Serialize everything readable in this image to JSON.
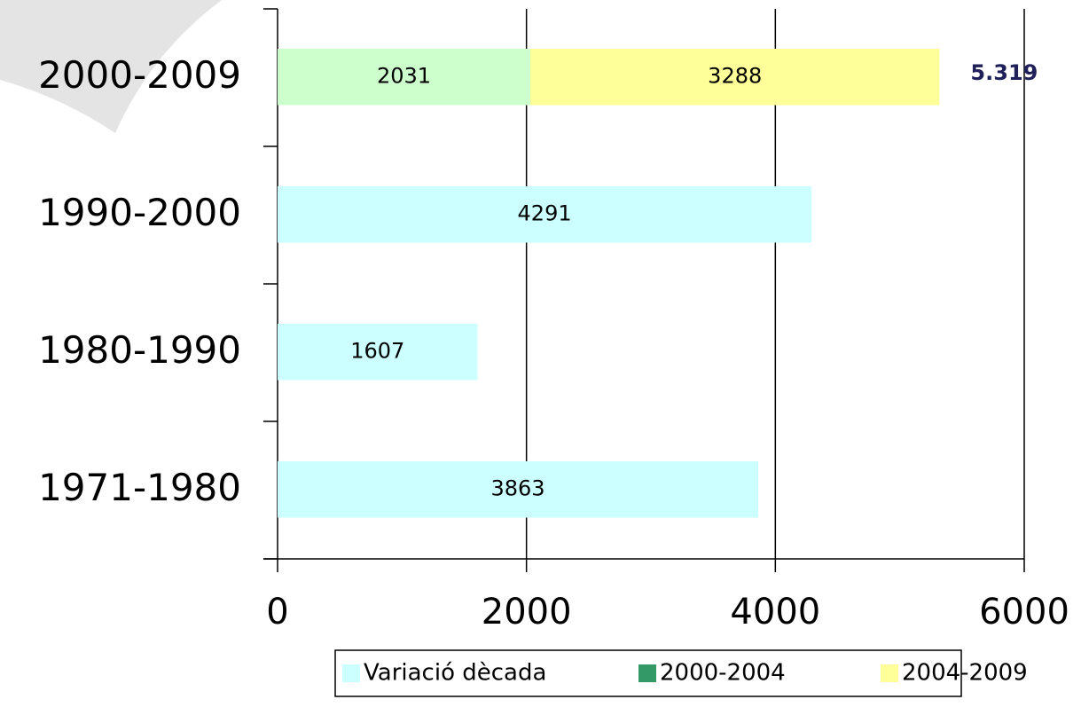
{
  "chart_data": {
    "type": "bar",
    "orientation": "horizontal",
    "stacked": true,
    "categories": [
      "1971-1980",
      "1980-1990",
      "1990-2000",
      "2000-2009"
    ],
    "series": [
      {
        "name": "Variació dècada",
        "color": "#ccffff",
        "values": [
          3863,
          1607,
          4291,
          null
        ]
      },
      {
        "name": "2000-2004",
        "color": "#ccffcc",
        "legend_color": "#339966",
        "values": [
          null,
          null,
          null,
          2031
        ]
      },
      {
        "name": "2004-2009",
        "color": "#ffff99",
        "values": [
          null,
          null,
          null,
          3288
        ]
      }
    ],
    "annotations": [
      {
        "text": "5.319"
      }
    ],
    "xlim": [
      0,
      6000
    ],
    "xticks": [
      0,
      2000,
      4000,
      6000
    ],
    "grid": true,
    "legend": "bottom"
  }
}
